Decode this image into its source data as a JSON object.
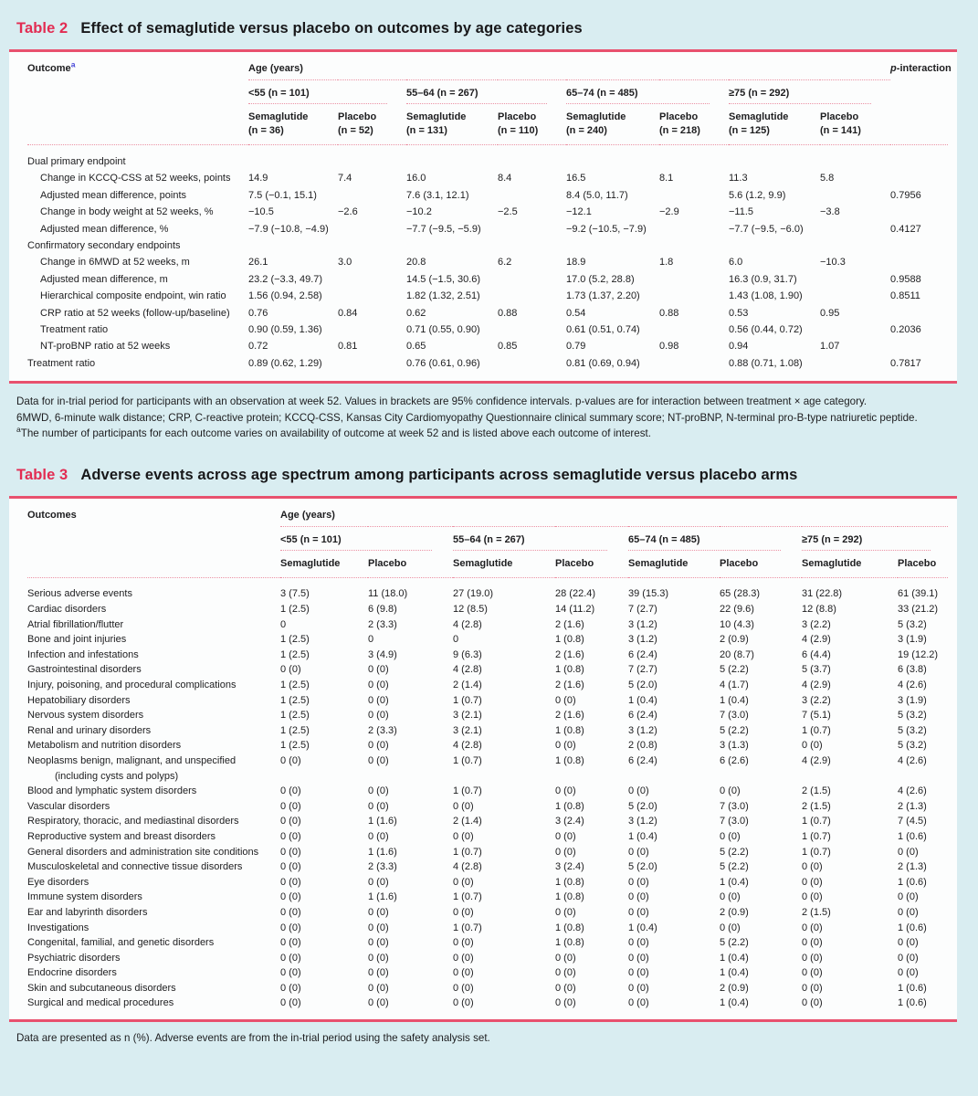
{
  "colors": {
    "background": "#d9edf1",
    "surface": "#fcfdfd",
    "accent_red": "#e22c52",
    "rule_red": "#e8516e",
    "dotted_pink": "#eb92a4",
    "text": "#1d1d1f",
    "footnote_marker_blue": "#4646d8"
  },
  "table2": {
    "label": "Table 2",
    "title": "Effect of semaglutide versus placebo on outcomes by age categories",
    "header": {
      "outcome": "Outcome",
      "outcome_marker": "a",
      "age_years": "Age (years)",
      "p_interaction": "p-interaction",
      "groups": [
        {
          "label": "<55 (n = 101)",
          "arms": [
            {
              "name": "Semaglutide",
              "n": "(n = 36)"
            },
            {
              "name": "Placebo",
              "n": "(n = 52)"
            }
          ]
        },
        {
          "label": "55–64 (n = 267)",
          "arms": [
            {
              "name": "Semaglutide",
              "n": "(n = 131)"
            },
            {
              "name": "Placebo",
              "n": "(n = 110)"
            }
          ]
        },
        {
          "label": "65–74 (n = 485)",
          "arms": [
            {
              "name": "Semaglutide",
              "n": "(n = 240)"
            },
            {
              "name": "Placebo",
              "n": "(n = 218)"
            }
          ]
        },
        {
          "label": "≥75 (n = 292)",
          "arms": [
            {
              "name": "Semaglutide",
              "n": "(n = 125)"
            },
            {
              "name": "Placebo",
              "n": "(n = 141)"
            }
          ]
        }
      ]
    },
    "rows": [
      {
        "label": "Dual primary endpoint",
        "indent": 0,
        "cells": [
          "",
          "",
          "",
          "",
          "",
          "",
          "",
          ""
        ],
        "p": ""
      },
      {
        "label": "Change in KCCQ-CSS at 52 weeks, points",
        "indent": 1,
        "cells": [
          "14.9",
          "7.4",
          "16.0",
          "8.4",
          "16.5",
          "8.1",
          "11.3",
          "5.8"
        ],
        "p": ""
      },
      {
        "label": "Adjusted mean difference, points",
        "indent": 1,
        "cells": [
          "7.5 (−0.1, 15.1)",
          "",
          "7.6 (3.1, 12.1)",
          "",
          "8.4 (5.0, 11.7)",
          "",
          "5.6 (1.2, 9.9)",
          ""
        ],
        "p": "0.7956"
      },
      {
        "label": "Change in body weight at 52 weeks, %",
        "indent": 1,
        "cells": [
          "−10.5",
          "−2.6",
          "−10.2",
          "−2.5",
          "−12.1",
          "−2.9",
          "−11.5",
          "−3.8"
        ],
        "p": ""
      },
      {
        "label": "Adjusted mean difference, %",
        "indent": 1,
        "cells": [
          "−7.9 (−10.8, −4.9)",
          "",
          "−7.7 (−9.5, −5.9)",
          "",
          "−9.2 (−10.5, −7.9)",
          "",
          "−7.7 (−9.5, −6.0)",
          ""
        ],
        "p": "0.4127"
      },
      {
        "label": "Confirmatory secondary endpoints",
        "indent": 0,
        "cells": [
          "",
          "",
          "",
          "",
          "",
          "",
          "",
          ""
        ],
        "p": ""
      },
      {
        "label": "Change in 6MWD at 52 weeks, m",
        "indent": 1,
        "cells": [
          "26.1",
          "3.0",
          "20.8",
          "6.2",
          "18.9",
          "1.8",
          "6.0",
          "−10.3"
        ],
        "p": ""
      },
      {
        "label": "Adjusted mean difference, m",
        "indent": 1,
        "cells": [
          "23.2 (−3.3, 49.7)",
          "",
          "14.5 (−1.5, 30.6)",
          "",
          "17.0 (5.2, 28.8)",
          "",
          "16.3 (0.9, 31.7)",
          ""
        ],
        "p": "0.9588"
      },
      {
        "label": "Hierarchical composite endpoint, win ratio",
        "indent": 1,
        "cells": [
          "1.56 (0.94, 2.58)",
          "",
          "1.82 (1.32, 2.51)",
          "",
          "1.73 (1.37, 2.20)",
          "",
          "1.43 (1.08, 1.90)",
          ""
        ],
        "p": "0.8511"
      },
      {
        "label": "CRP ratio at 52 weeks (follow-up/baseline)",
        "indent": 1,
        "cells": [
          "0.76",
          "0.84",
          "0.62",
          "0.88",
          "0.54",
          "0.88",
          "0.53",
          "0.95"
        ],
        "p": ""
      },
      {
        "label": "Treatment ratio",
        "indent": 1,
        "cells": [
          "0.90 (0.59, 1.36)",
          "",
          "0.71 (0.55, 0.90)",
          "",
          "0.61 (0.51, 0.74)",
          "",
          "0.56 (0.44, 0.72)",
          ""
        ],
        "p": "0.2036"
      },
      {
        "label": "NT-proBNP ratio at 52 weeks",
        "indent": 1,
        "cells": [
          "0.72",
          "0.81",
          "0.65",
          "0.85",
          "0.79",
          "0.98",
          "0.94",
          "1.07"
        ],
        "p": ""
      },
      {
        "label": "Treatment ratio",
        "indent": 0,
        "cells": [
          "0.89 (0.62, 1.29)",
          "",
          "0.76 (0.61, 0.96)",
          "",
          "0.81 (0.69, 0.94)",
          "",
          "0.88 (0.71, 1.08)",
          ""
        ],
        "p": "0.7817"
      }
    ],
    "footnote1": "Data for in-trial period for participants with an observation at week 52. Values in brackets are 95% confidence intervals. p-values are for interaction between treatment × age category.",
    "footnote2": "6MWD, 6-minute walk distance; CRP, C-reactive protein; KCCQ-CSS, Kansas City Cardiomyopathy Questionnaire clinical summary score; NT-proBNP, N-terminal pro-B-type natriuretic peptide.",
    "footnote3_marker": "a",
    "footnote3": "The number of participants for each outcome varies on availability of outcome at week 52 and is listed above each outcome of interest."
  },
  "table3": {
    "label": "Table 3",
    "title": "Adverse events across age spectrum among participants across semaglutide versus placebo arms",
    "header": {
      "outcome": "Outcomes",
      "age_years": "Age (years)",
      "groups": [
        {
          "label": "<55 (n = 101)",
          "arms": [
            "Semaglutide",
            "Placebo"
          ]
        },
        {
          "label": "55–64 (n = 267)",
          "arms": [
            "Semaglutide",
            "Placebo"
          ]
        },
        {
          "label": "65–74 (n = 485)",
          "arms": [
            "Semaglutide",
            "Placebo"
          ]
        },
        {
          "label": "≥75 (n = 292)",
          "arms": [
            "Semaglutide",
            "Placebo"
          ]
        }
      ]
    },
    "rows": [
      {
        "label": "Serious adverse events",
        "cells": [
          "3 (7.5)",
          "11 (18.0)",
          "27 (19.0)",
          "28 (22.4)",
          "39 (15.3)",
          "65 (28.3)",
          "31 (22.8)",
          "61 (39.1)"
        ]
      },
      {
        "label": "Cardiac disorders",
        "cells": [
          "1 (2.5)",
          "6 (9.8)",
          "12 (8.5)",
          "14 (11.2)",
          "7 (2.7)",
          "22 (9.6)",
          "12 (8.8)",
          "33 (21.2)"
        ]
      },
      {
        "label": "Atrial fibrillation/flutter",
        "cells": [
          "0",
          "2 (3.3)",
          "4 (2.8)",
          "2 (1.6)",
          "3 (1.2)",
          "10 (4.3)",
          "3 (2.2)",
          "5 (3.2)"
        ]
      },
      {
        "label": "Bone and joint injuries",
        "cells": [
          "1 (2.5)",
          "0",
          "0",
          "1 (0.8)",
          "3 (1.2)",
          "2 (0.9)",
          "4 (2.9)",
          "3 (1.9)"
        ]
      },
      {
        "label": "Infection and infestations",
        "cells": [
          "1 (2.5)",
          "3 (4.9)",
          "9 (6.3)",
          "2 (1.6)",
          "6 (2.4)",
          "20 (8.7)",
          "6 (4.4)",
          "19 (12.2)"
        ]
      },
      {
        "label": "Gastrointestinal disorders",
        "cells": [
          "0 (0)",
          "0 (0)",
          "4 (2.8)",
          "1 (0.8)",
          "7 (2.7)",
          "5 (2.2)",
          "5 (3.7)",
          "6 (3.8)"
        ]
      },
      {
        "label": "Injury, poisoning, and procedural complications",
        "cells": [
          "1 (2.5)",
          "0 (0)",
          "2 (1.4)",
          "2 (1.6)",
          "5 (2.0)",
          "4 (1.7)",
          "4 (2.9)",
          "4 (2.6)"
        ]
      },
      {
        "label": "Hepatobiliary disorders",
        "cells": [
          "1 (2.5)",
          "0 (0)",
          "1 (0.7)",
          "0 (0)",
          "1 (0.4)",
          "1 (0.4)",
          "3 (2.2)",
          "3 (1.9)"
        ]
      },
      {
        "label": "Nervous system disorders",
        "cells": [
          "1 (2.5)",
          "0 (0)",
          "3 (2.1)",
          "2 (1.6)",
          "6 (2.4)",
          "7 (3.0)",
          "7 (5.1)",
          "5 (3.2)"
        ]
      },
      {
        "label": "Renal and urinary disorders",
        "cells": [
          "1 (2.5)",
          "2 (3.3)",
          "3 (2.1)",
          "1 (0.8)",
          "3 (1.2)",
          "5 (2.2)",
          "1 (0.7)",
          "5 (3.2)"
        ]
      },
      {
        "label": "Metabolism and nutrition disorders",
        "cells": [
          "1 (2.5)",
          "0 (0)",
          "4 (2.8)",
          "0 (0)",
          "2 (0.8)",
          "3 (1.3)",
          "0 (0)",
          "5 (3.2)"
        ]
      },
      {
        "label": "Neoplasms benign, malignant, and unspecified (including cysts and polyps)",
        "cells": [
          "0 (0)",
          "0 (0)",
          "1 (0.7)",
          "1 (0.8)",
          "6 (2.4)",
          "6 (2.6)",
          "4 (2.9)",
          "4 (2.6)"
        ]
      },
      {
        "label": "Blood and lymphatic system disorders",
        "cells": [
          "0 (0)",
          "0 (0)",
          "1 (0.7)",
          "0 (0)",
          "0 (0)",
          "0 (0)",
          "2 (1.5)",
          "4 (2.6)"
        ]
      },
      {
        "label": "Vascular disorders",
        "cells": [
          "0 (0)",
          "0 (0)",
          "0 (0)",
          "1 (0.8)",
          "5 (2.0)",
          "7 (3.0)",
          "2 (1.5)",
          "2 (1.3)"
        ]
      },
      {
        "label": "Respiratory, thoracic, and mediastinal disorders",
        "cells": [
          "0 (0)",
          "1 (1.6)",
          "2 (1.4)",
          "3 (2.4)",
          "3 (1.2)",
          "7 (3.0)",
          "1 (0.7)",
          "7 (4.5)"
        ]
      },
      {
        "label": "Reproductive system and breast disorders",
        "cells": [
          "0 (0)",
          "0 (0)",
          "0 (0)",
          "0 (0)",
          "1 (0.4)",
          "0 (0)",
          "1 (0.7)",
          "1 (0.6)"
        ]
      },
      {
        "label": "General disorders and administration site conditions",
        "cells": [
          "0 (0)",
          "1 (1.6)",
          "1 (0.7)",
          "0 (0)",
          "0 (0)",
          "5 (2.2)",
          "1 (0.7)",
          "0 (0)"
        ]
      },
      {
        "label": "Musculoskeletal and connective tissue disorders",
        "cells": [
          "0 (0)",
          "2 (3.3)",
          "4 (2.8)",
          "3 (2.4)",
          "5 (2.0)",
          "5 (2.2)",
          "0 (0)",
          "2 (1.3)"
        ]
      },
      {
        "label": "Eye disorders",
        "cells": [
          "0 (0)",
          "0 (0)",
          "0 (0)",
          "1 (0.8)",
          "0 (0)",
          "1 (0.4)",
          "0 (0)",
          "1 (0.6)"
        ]
      },
      {
        "label": "Immune system disorders",
        "cells": [
          "0 (0)",
          "1 (1.6)",
          "1 (0.7)",
          "1 (0.8)",
          "0 (0)",
          "0 (0)",
          "0 (0)",
          "0 (0)"
        ]
      },
      {
        "label": "Ear and labyrinth disorders",
        "cells": [
          "0 (0)",
          "0 (0)",
          "0 (0)",
          "0 (0)",
          "0 (0)",
          "2 (0.9)",
          "2 (1.5)",
          "0 (0)"
        ]
      },
      {
        "label": "Investigations",
        "cells": [
          "0 (0)",
          "0 (0)",
          "1 (0.7)",
          "1 (0.8)",
          "1 (0.4)",
          "0 (0)",
          "0 (0)",
          "1 (0.6)"
        ]
      },
      {
        "label": "Congenital, familial, and genetic disorders",
        "cells": [
          "0 (0)",
          "0 (0)",
          "0 (0)",
          "1 (0.8)",
          "0 (0)",
          "5 (2.2)",
          "0 (0)",
          "0 (0)"
        ]
      },
      {
        "label": "Psychiatric disorders",
        "cells": [
          "0 (0)",
          "0 (0)",
          "0 (0)",
          "0 (0)",
          "0 (0)",
          "1 (0.4)",
          "0 (0)",
          "0 (0)"
        ]
      },
      {
        "label": "Endocrine disorders",
        "cells": [
          "0 (0)",
          "0 (0)",
          "0 (0)",
          "0 (0)",
          "0 (0)",
          "1 (0.4)",
          "0 (0)",
          "0 (0)"
        ]
      },
      {
        "label": "Skin and subcutaneous disorders",
        "cells": [
          "0 (0)",
          "0 (0)",
          "0 (0)",
          "0 (0)",
          "0 (0)",
          "2 (0.9)",
          "0 (0)",
          "1 (0.6)"
        ]
      },
      {
        "label": "Surgical and medical procedures",
        "cells": [
          "0 (0)",
          "0 (0)",
          "0 (0)",
          "0 (0)",
          "0 (0)",
          "1 (0.4)",
          "0 (0)",
          "1 (0.6)"
        ]
      }
    ],
    "footer": "Data are presented as n (%). Adverse events are from the in-trial period using the safety analysis set."
  }
}
